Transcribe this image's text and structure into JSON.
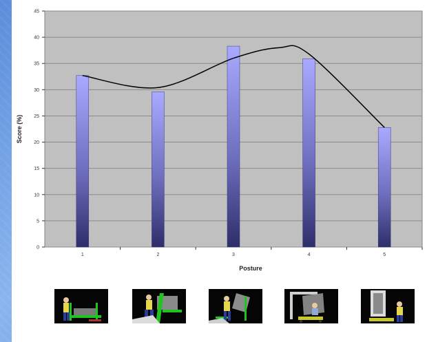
{
  "chart_data": {
    "type": "bar",
    "categories": [
      "1",
      "2",
      "3",
      "4",
      "5"
    ],
    "values": [
      32.7,
      29.6,
      38.3,
      35.9,
      22.8
    ],
    "xlabel": "Posture",
    "ylabel": "Score (%)",
    "ylim": [
      0,
      45
    ],
    "yticks": [
      0,
      5,
      10,
      15,
      20,
      25,
      30,
      35,
      40,
      45
    ],
    "grid": true,
    "trendline": {
      "type": "smooth-curve",
      "points": [
        [
          1,
          32.7
        ],
        [
          2,
          30.4
        ],
        [
          3,
          36.0
        ],
        [
          3.6,
          38.0
        ],
        [
          4,
          36.8
        ],
        [
          5,
          22.8
        ]
      ]
    },
    "colors": {
      "plot_background": "#c0c0c0",
      "gridline": "#8a8a8a",
      "bar_top": "#a9a9ff",
      "bar_bottom": "#2e2e6a",
      "trendline": "#000000"
    }
  },
  "images": [
    {
      "icon": "posture-1-figure-icon"
    },
    {
      "icon": "posture-2-figure-icon"
    },
    {
      "icon": "posture-3-figure-icon"
    },
    {
      "icon": "posture-4-figure-icon"
    },
    {
      "icon": "posture-5-figure-icon"
    }
  ]
}
